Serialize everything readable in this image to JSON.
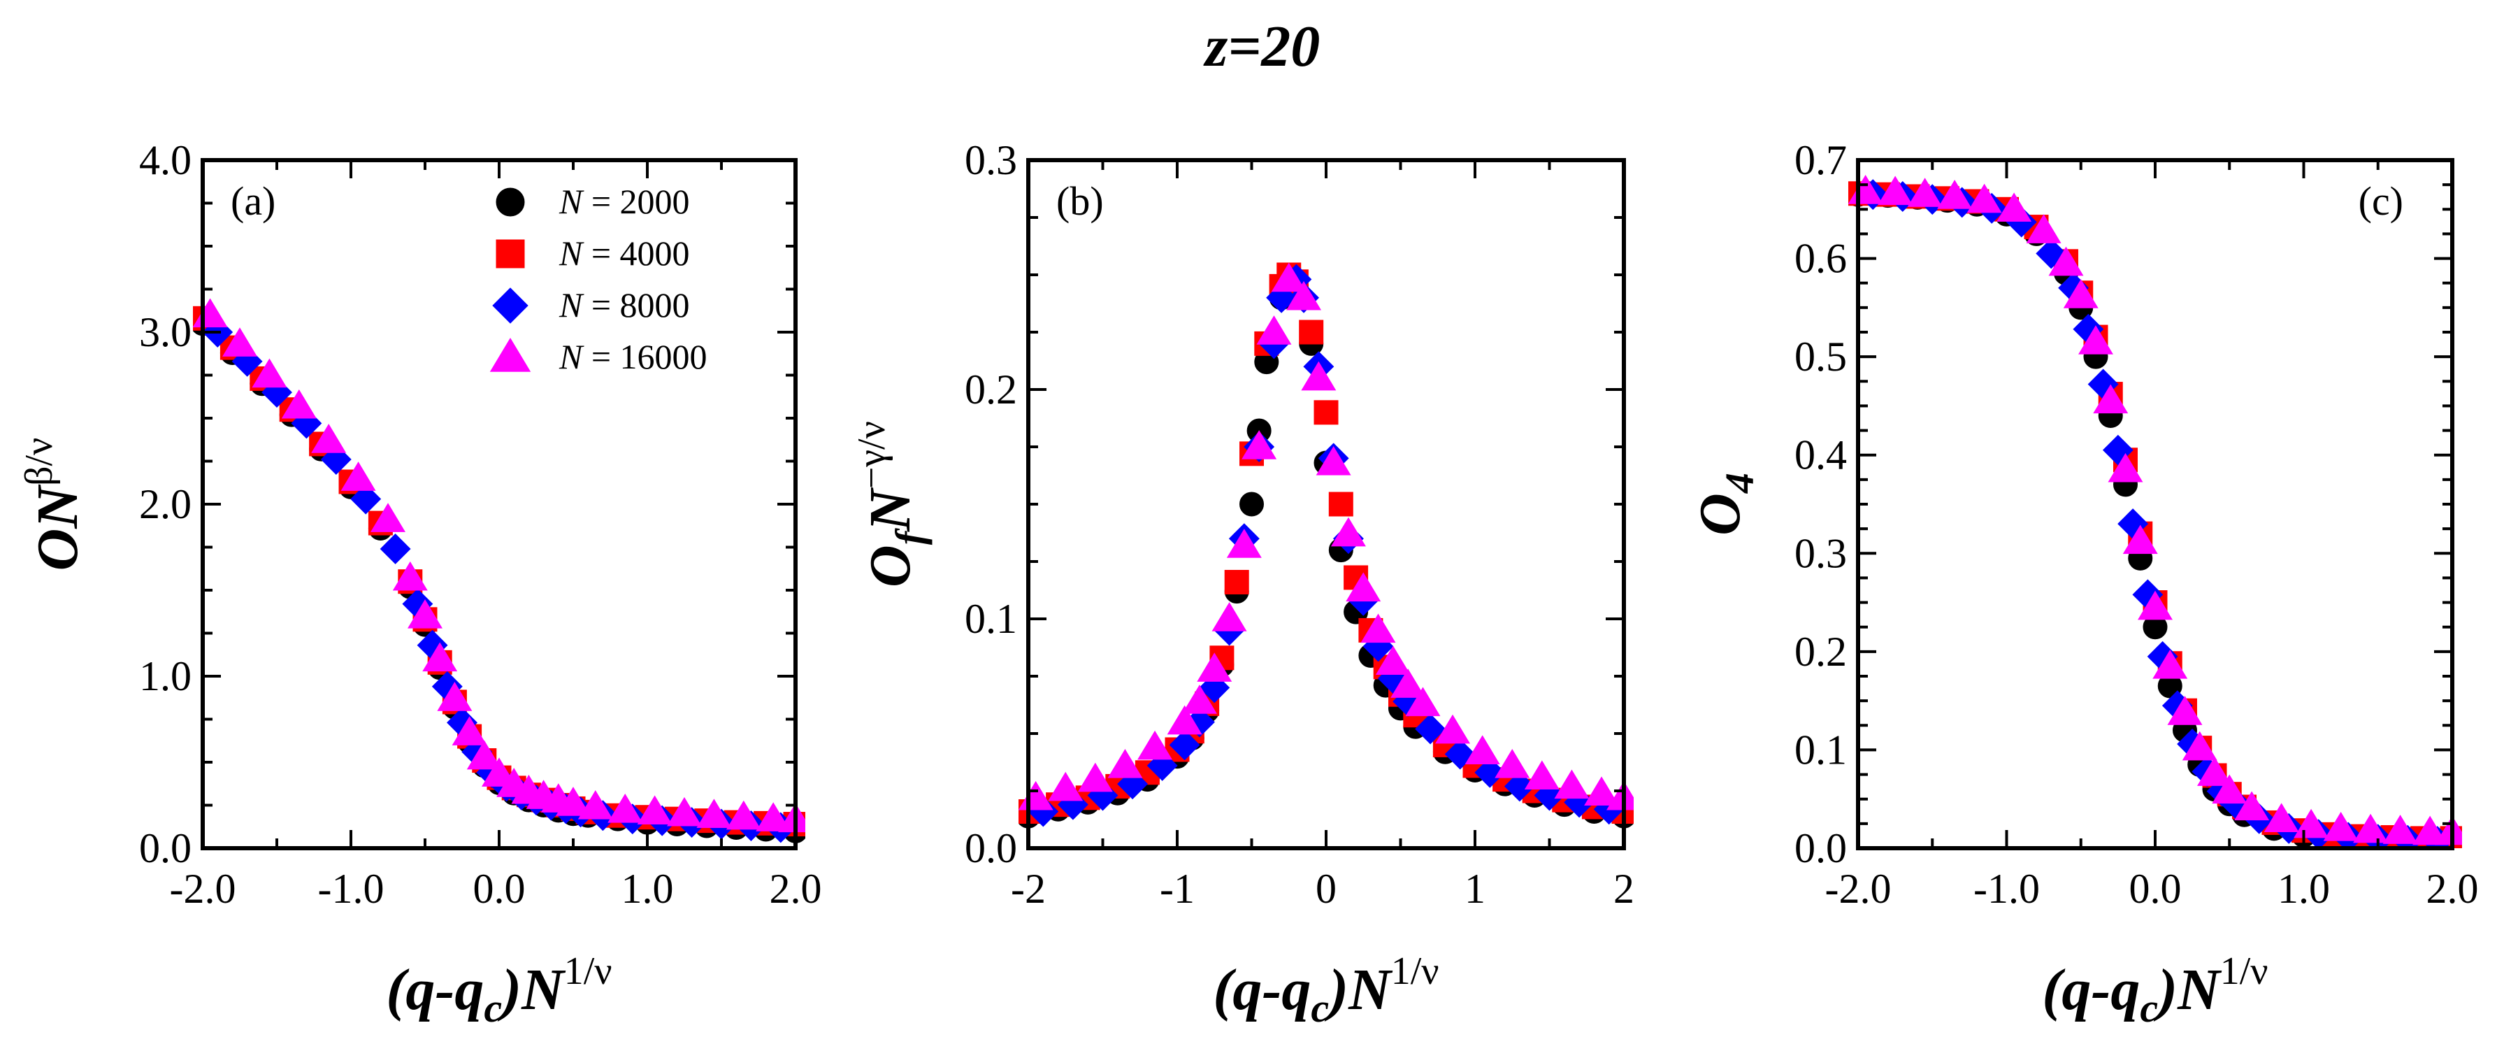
{
  "figure_title": "z=20",
  "series_colors": {
    "N = 2000": "#000000",
    "N = 4000": "#ff0000",
    "N = 8000": "#0000ff",
    "N = 16000": "#ff00ff"
  },
  "chart_data": [
    {
      "type": "scatter",
      "panel_label": "(a)",
      "xlabel": {
        "head": "(",
        "q": "q",
        "dash": "-",
        "qc": "q",
        "qc_sub": "c",
        "close": ")",
        "N": "N",
        "exp": "1/ν"
      },
      "ylabel": {
        "O": "O",
        "N": "N",
        "exp": "β/ν"
      },
      "xlim": [
        -2.0,
        2.0
      ],
      "ylim": [
        0.0,
        4.0
      ],
      "xticks": [
        -2.0,
        -1.0,
        0.0,
        1.0,
        2.0
      ],
      "xtick_labels": [
        "-2.0",
        "-1.0",
        "0.0",
        "1.0",
        "2.0"
      ],
      "yticks": [
        0.0,
        1.0,
        2.0,
        3.0,
        4.0
      ],
      "ytick_labels": [
        "0.0",
        "1.0",
        "2.0",
        "3.0",
        "4.0"
      ],
      "legend": {
        "position": "top-right",
        "entries": [
          {
            "var": "N",
            "text": " = 2000",
            "marker": "circle"
          },
          {
            "var": "N",
            "text": " = 4000",
            "marker": "square"
          },
          {
            "var": "N",
            "text": " = 8000",
            "marker": "diamond"
          },
          {
            "var": "N",
            "text": " = 16000",
            "marker": "triangle"
          }
        ]
      },
      "series": [
        {
          "name": "N = 2000",
          "marker": "circle",
          "x": [
            -2.0,
            -1.8,
            -1.6,
            -1.4,
            -1.2,
            -1.0,
            -0.8,
            -0.6,
            -0.5,
            -0.4,
            -0.3,
            -0.2,
            -0.1,
            0.0,
            0.1,
            0.2,
            0.3,
            0.4,
            0.5,
            0.6,
            0.8,
            1.0,
            1.2,
            1.4,
            1.6,
            1.8,
            2.0
          ],
          "y": [
            3.05,
            2.88,
            2.7,
            2.52,
            2.32,
            2.1,
            1.86,
            1.52,
            1.3,
            1.05,
            0.82,
            0.62,
            0.48,
            0.38,
            0.32,
            0.28,
            0.25,
            0.22,
            0.2,
            0.19,
            0.17,
            0.15,
            0.14,
            0.13,
            0.12,
            0.11,
            0.1
          ]
        },
        {
          "name": "N = 4000",
          "marker": "square",
          "x": [
            -2.0,
            -1.8,
            -1.6,
            -1.4,
            -1.2,
            -1.0,
            -0.8,
            -0.6,
            -0.5,
            -0.4,
            -0.3,
            -0.2,
            -0.1,
            0.0,
            0.1,
            0.2,
            0.3,
            0.4,
            0.5,
            0.6,
            0.8,
            1.0,
            1.2,
            1.4,
            1.6,
            1.8,
            2.0
          ],
          "y": [
            3.08,
            2.91,
            2.73,
            2.55,
            2.35,
            2.13,
            1.89,
            1.55,
            1.33,
            1.08,
            0.85,
            0.65,
            0.51,
            0.41,
            0.35,
            0.31,
            0.28,
            0.25,
            0.23,
            0.21,
            0.19,
            0.18,
            0.17,
            0.16,
            0.15,
            0.145,
            0.14
          ]
        },
        {
          "name": "N = 8000",
          "marker": "diamond",
          "x": [
            -1.9,
            -1.7,
            -1.5,
            -1.3,
            -1.1,
            -0.9,
            -0.7,
            -0.55,
            -0.45,
            -0.35,
            -0.25,
            -0.15,
            -0.05,
            0.05,
            0.15,
            0.25,
            0.35,
            0.45,
            0.55,
            0.7,
            0.9,
            1.1,
            1.3,
            1.5,
            1.7,
            1.9
          ],
          "y": [
            3.0,
            2.83,
            2.65,
            2.47,
            2.26,
            2.03,
            1.74,
            1.42,
            1.18,
            0.94,
            0.73,
            0.56,
            0.44,
            0.36,
            0.31,
            0.28,
            0.25,
            0.23,
            0.21,
            0.19,
            0.17,
            0.16,
            0.15,
            0.14,
            0.13,
            0.12
          ]
        },
        {
          "name": "N = 16000",
          "marker": "triangle",
          "x": [
            -1.95,
            -1.75,
            -1.55,
            -1.35,
            -1.15,
            -0.95,
            -0.75,
            -0.6,
            -0.5,
            -0.4,
            -0.3,
            -0.2,
            -0.1,
            0.0,
            0.1,
            0.2,
            0.3,
            0.4,
            0.5,
            0.65,
            0.85,
            1.05,
            1.25,
            1.45,
            1.65,
            1.85,
            2.0
          ],
          "y": [
            3.1,
            2.93,
            2.75,
            2.57,
            2.37,
            2.15,
            1.91,
            1.57,
            1.35,
            1.1,
            0.87,
            0.67,
            0.53,
            0.43,
            0.37,
            0.33,
            0.3,
            0.28,
            0.26,
            0.24,
            0.22,
            0.21,
            0.2,
            0.19,
            0.18,
            0.17,
            0.165
          ]
        }
      ]
    },
    {
      "type": "scatter",
      "panel_label": "(b)",
      "xlabel": {
        "head": "(",
        "q": "q",
        "dash": "-",
        "qc": "q",
        "qc_sub": "c",
        "close": ")",
        "N": "N",
        "exp": "1/ν"
      },
      "ylabel": {
        "O": "O",
        "sub": "f",
        "N": "N",
        "exp": "−γ/ν"
      },
      "xlim": [
        -2,
        2
      ],
      "ylim": [
        0.0,
        0.3
      ],
      "xticks": [
        -2,
        -1,
        0,
        1,
        2
      ],
      "xtick_labels": [
        "-2",
        "-1",
        "0",
        "1",
        "2"
      ],
      "yticks": [
        0.0,
        0.1,
        0.2,
        0.3
      ],
      "ytick_labels": [
        "0.0",
        "0.1",
        "0.2",
        "0.3"
      ],
      "series": [
        {
          "name": "N = 2000",
          "marker": "circle",
          "x": [
            -2.0,
            -1.8,
            -1.6,
            -1.4,
            -1.2,
            -1.0,
            -0.9,
            -0.8,
            -0.7,
            -0.6,
            -0.5,
            -0.45,
            -0.4,
            -0.3,
            -0.2,
            -0.1,
            0.0,
            0.1,
            0.2,
            0.3,
            0.4,
            0.5,
            0.6,
            0.8,
            1.0,
            1.2,
            1.4,
            1.6,
            1.8,
            2.0
          ],
          "y": [
            0.014,
            0.017,
            0.02,
            0.024,
            0.03,
            0.04,
            0.048,
            0.06,
            0.08,
            0.112,
            0.15,
            0.182,
            0.212,
            0.24,
            0.245,
            0.22,
            0.168,
            0.13,
            0.103,
            0.084,
            0.071,
            0.061,
            0.053,
            0.042,
            0.034,
            0.028,
            0.023,
            0.019,
            0.016,
            0.014
          ]
        },
        {
          "name": "N = 4000",
          "marker": "square",
          "x": [
            -2.0,
            -1.8,
            -1.6,
            -1.4,
            -1.2,
            -1.0,
            -0.9,
            -0.8,
            -0.7,
            -0.6,
            -0.5,
            -0.4,
            -0.3,
            -0.25,
            -0.2,
            -0.1,
            0.0,
            0.1,
            0.2,
            0.3,
            0.4,
            0.5,
            0.6,
            0.8,
            1.0,
            1.2,
            1.4,
            1.6,
            1.8,
            2.0
          ],
          "y": [
            0.016,
            0.019,
            0.022,
            0.027,
            0.033,
            0.043,
            0.051,
            0.063,
            0.083,
            0.116,
            0.172,
            0.22,
            0.245,
            0.25,
            0.247,
            0.225,
            0.19,
            0.15,
            0.118,
            0.095,
            0.079,
            0.067,
            0.058,
            0.045,
            0.036,
            0.03,
            0.025,
            0.021,
            0.018,
            0.016
          ]
        },
        {
          "name": "N = 8000",
          "marker": "diamond",
          "x": [
            -1.9,
            -1.7,
            -1.5,
            -1.3,
            -1.1,
            -0.95,
            -0.85,
            -0.75,
            -0.65,
            -0.55,
            -0.45,
            -0.35,
            -0.3,
            -0.2,
            -0.15,
            -0.05,
            0.05,
            0.15,
            0.25,
            0.35,
            0.45,
            0.55,
            0.7,
            0.9,
            1.1,
            1.3,
            1.5,
            1.7,
            1.9
          ],
          "y": [
            0.016,
            0.019,
            0.023,
            0.028,
            0.036,
            0.045,
            0.055,
            0.07,
            0.095,
            0.135,
            0.175,
            0.22,
            0.24,
            0.248,
            0.24,
            0.21,
            0.17,
            0.135,
            0.108,
            0.088,
            0.074,
            0.064,
            0.052,
            0.041,
            0.033,
            0.027,
            0.023,
            0.02,
            0.017
          ]
        },
        {
          "name": "N = 16000",
          "marker": "triangle",
          "x": [
            -1.95,
            -1.75,
            -1.55,
            -1.35,
            -1.15,
            -0.95,
            -0.85,
            -0.75,
            -0.65,
            -0.55,
            -0.45,
            -0.35,
            -0.25,
            -0.15,
            -0.05,
            0.05,
            0.15,
            0.25,
            0.35,
            0.45,
            0.55,
            0.65,
            0.85,
            1.05,
            1.25,
            1.45,
            1.65,
            1.85,
            2.0
          ],
          "y": [
            0.022,
            0.026,
            0.03,
            0.036,
            0.044,
            0.055,
            0.064,
            0.078,
            0.1,
            0.132,
            0.175,
            0.225,
            0.248,
            0.24,
            0.205,
            0.168,
            0.137,
            0.113,
            0.095,
            0.081,
            0.071,
            0.063,
            0.051,
            0.042,
            0.036,
            0.031,
            0.027,
            0.024,
            0.022
          ]
        }
      ]
    },
    {
      "type": "scatter",
      "panel_label": "(c)",
      "xlabel": {
        "head": "(",
        "q": "q",
        "dash": "-",
        "qc": "q",
        "qc_sub": "c",
        "close": ")",
        "N": "N",
        "exp": "1/ν"
      },
      "ylabel": {
        "O": "O",
        "sub": "4"
      },
      "xlim": [
        -2.0,
        2.0
      ],
      "ylim": [
        0.0,
        0.7
      ],
      "xticks": [
        -2.0,
        -1.0,
        0.0,
        1.0,
        2.0
      ],
      "xtick_labels": [
        "-2.0",
        "-1.0",
        "0.0",
        "1.0",
        "2.0"
      ],
      "yticks": [
        0.0,
        0.1,
        0.2,
        0.3,
        0.4,
        0.5,
        0.6,
        0.7
      ],
      "ytick_labels": [
        "0.0",
        "0.1",
        "0.2",
        "0.3",
        "0.4",
        "0.5",
        "0.6",
        "0.7"
      ],
      "series": [
        {
          "name": "N = 2000",
          "marker": "circle",
          "x": [
            -2.0,
            -1.8,
            -1.6,
            -1.4,
            -1.2,
            -1.0,
            -0.8,
            -0.6,
            -0.5,
            -0.4,
            -0.3,
            -0.2,
            -0.1,
            0.0,
            0.1,
            0.2,
            0.3,
            0.4,
            0.5,
            0.6,
            0.8,
            1.0,
            1.2,
            1.4,
            1.6,
            1.8,
            2.0
          ],
          "y": [
            0.665,
            0.664,
            0.662,
            0.659,
            0.655,
            0.645,
            0.625,
            0.585,
            0.55,
            0.5,
            0.44,
            0.37,
            0.295,
            0.225,
            0.165,
            0.12,
            0.085,
            0.06,
            0.045,
            0.034,
            0.02,
            0.013,
            0.009,
            0.006,
            0.004,
            0.003,
            0.003
          ]
        },
        {
          "name": "N = 4000",
          "marker": "square",
          "x": [
            -2.0,
            -1.8,
            -1.6,
            -1.4,
            -1.2,
            -1.0,
            -0.8,
            -0.6,
            -0.5,
            -0.4,
            -0.3,
            -0.2,
            -0.1,
            0.0,
            0.1,
            0.2,
            0.3,
            0.4,
            0.5,
            0.6,
            0.8,
            1.0,
            1.2,
            1.4,
            1.6,
            1.8,
            2.0
          ],
          "y": [
            0.666,
            0.665,
            0.663,
            0.661,
            0.658,
            0.65,
            0.632,
            0.597,
            0.565,
            0.52,
            0.462,
            0.395,
            0.32,
            0.25,
            0.188,
            0.14,
            0.102,
            0.074,
            0.055,
            0.042,
            0.026,
            0.018,
            0.014,
            0.012,
            0.011,
            0.01,
            0.01
          ]
        },
        {
          "name": "N = 8000",
          "marker": "diamond",
          "x": [
            -1.9,
            -1.7,
            -1.5,
            -1.3,
            -1.1,
            -0.9,
            -0.7,
            -0.55,
            -0.45,
            -0.35,
            -0.25,
            -0.15,
            -0.05,
            0.05,
            0.15,
            0.25,
            0.35,
            0.45,
            0.55,
            0.7,
            0.9,
            1.1,
            1.3,
            1.5,
            1.7,
            1.9
          ],
          "y": [
            0.665,
            0.663,
            0.66,
            0.657,
            0.651,
            0.637,
            0.605,
            0.57,
            0.528,
            0.472,
            0.405,
            0.33,
            0.258,
            0.195,
            0.145,
            0.106,
            0.078,
            0.058,
            0.044,
            0.03,
            0.02,
            0.014,
            0.011,
            0.009,
            0.008,
            0.007
          ]
        },
        {
          "name": "N = 16000",
          "marker": "triangle",
          "x": [
            -1.95,
            -1.75,
            -1.55,
            -1.35,
            -1.15,
            -0.95,
            -0.75,
            -0.6,
            -0.5,
            -0.4,
            -0.3,
            -0.2,
            -0.1,
            0.0,
            0.1,
            0.2,
            0.3,
            0.4,
            0.5,
            0.65,
            0.85,
            1.05,
            1.25,
            1.45,
            1.65,
            1.85,
            2.0
          ],
          "y": [
            0.668,
            0.667,
            0.665,
            0.663,
            0.659,
            0.65,
            0.628,
            0.595,
            0.562,
            0.515,
            0.455,
            0.385,
            0.312,
            0.245,
            0.185,
            0.138,
            0.102,
            0.076,
            0.058,
            0.041,
            0.029,
            0.023,
            0.02,
            0.018,
            0.017,
            0.016,
            0.016
          ]
        }
      ]
    }
  ]
}
